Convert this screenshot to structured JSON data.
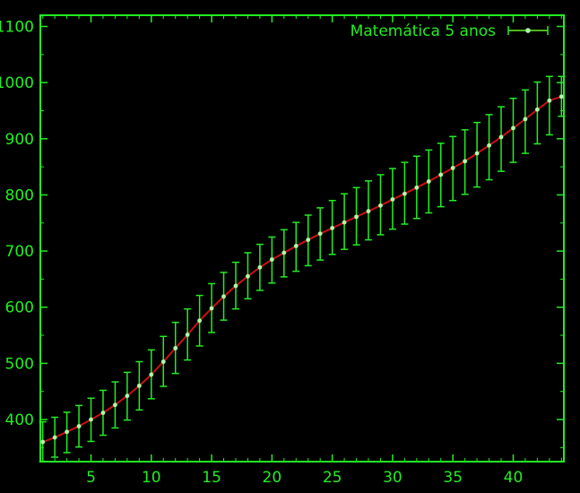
{
  "chart_data": {
    "type": "line",
    "series": [
      {
        "name": "Matemática 5 anos",
        "x": [
          1,
          2,
          3,
          4,
          5,
          6,
          7,
          8,
          9,
          10,
          11,
          12,
          13,
          14,
          15,
          16,
          17,
          18,
          19,
          20,
          21,
          22,
          23,
          24,
          25,
          26,
          27,
          28,
          29,
          30,
          31,
          32,
          33,
          34,
          35,
          36,
          37,
          38,
          39,
          40,
          41,
          42,
          43,
          44
        ],
        "y": [
          360,
          368,
          378,
          388,
          400,
          412,
          426,
          442,
          460,
          480,
          503,
          527,
          551,
          576,
          598,
          619,
          638,
          655,
          671,
          685,
          697,
          709,
          720,
          731,
          741,
          751,
          761,
          771,
          781,
          792,
          802,
          813,
          824,
          836,
          848,
          860,
          874,
          888,
          903,
          919,
          935,
          952,
          968,
          975
        ],
        "error_low": [
          325,
          333,
          341,
          351,
          361,
          372,
          385,
          399,
          417,
          437,
          459,
          482,
          506,
          531,
          555,
          577,
          597,
          615,
          630,
          643,
          654,
          664,
          674,
          684,
          694,
          703,
          711,
          720,
          729,
          739,
          748,
          758,
          768,
          779,
          790,
          801,
          814,
          827,
          842,
          858,
          874,
          891,
          907,
          940
        ],
        "error_high": [
          396,
          404,
          413,
          425,
          438,
          452,
          467,
          484,
          503,
          524,
          548,
          573,
          597,
          621,
          642,
          662,
          680,
          697,
          712,
          725,
          738,
          751,
          764,
          777,
          790,
          802,
          813,
          825,
          836,
          847,
          858,
          869,
          880,
          892,
          904,
          916,
          929,
          943,
          957,
          972,
          987,
          1001,
          1011,
          1011
        ]
      }
    ],
    "xlim": [
      0.8,
      44.2
    ],
    "ylim": [
      325,
      1120
    ],
    "x_ticks": [
      5,
      10,
      15,
      20,
      25,
      30,
      35,
      40
    ],
    "y_ticks": [
      400,
      500,
      600,
      700,
      800,
      900,
      1000,
      1100
    ],
    "grid": false,
    "legend_position": "top-right",
    "colors": {
      "background": "#000000",
      "axes": "#22ee22",
      "line": "#cc1111",
      "error_bars": "#22ee22",
      "marker": "#aaffaa"
    }
  }
}
